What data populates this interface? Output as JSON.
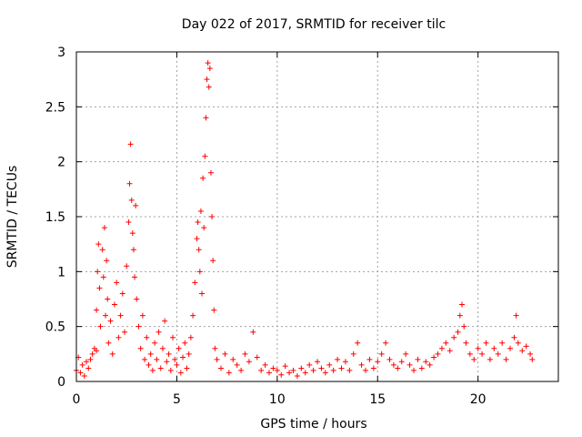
{
  "chart_data": {
    "type": "scatter",
    "title": "Day 022 of 2017, SRMTID for receiver tilc",
    "xlabel": "GPS time / hours",
    "ylabel": "SRMTID / TECUs",
    "xlim": [
      0,
      24
    ],
    "ylim": [
      0,
      3
    ],
    "xticks": [
      0,
      5,
      10,
      15,
      20
    ],
    "xtick_labels": [
      "0",
      "5",
      "10",
      "15",
      "20"
    ],
    "yticks": [
      0,
      0.5,
      1,
      1.5,
      2,
      2.5,
      3
    ],
    "ytick_labels": [
      "0",
      "0.5",
      "1",
      "1.5",
      "2",
      "2.5",
      "3"
    ],
    "grid": true,
    "marker": "+",
    "series": [
      {
        "name": "SRMTID",
        "color": "#ff0000",
        "points": [
          [
            0.0,
            0.1
          ],
          [
            0.1,
            0.22
          ],
          [
            0.2,
            0.08
          ],
          [
            0.3,
            0.15
          ],
          [
            0.4,
            0.05
          ],
          [
            0.5,
            0.18
          ],
          [
            0.6,
            0.12
          ],
          [
            0.7,
            0.2
          ],
          [
            0.8,
            0.25
          ],
          [
            0.9,
            0.3
          ],
          [
            1.0,
            0.28
          ],
          [
            1.0,
            0.65
          ],
          [
            1.05,
            1.0
          ],
          [
            1.1,
            1.25
          ],
          [
            1.15,
            0.85
          ],
          [
            1.2,
            0.5
          ],
          [
            1.3,
            1.2
          ],
          [
            1.35,
            0.95
          ],
          [
            1.4,
            1.4
          ],
          [
            1.45,
            0.6
          ],
          [
            1.5,
            1.1
          ],
          [
            1.55,
            0.75
          ],
          [
            1.6,
            0.35
          ],
          [
            1.7,
            0.55
          ],
          [
            1.8,
            0.25
          ],
          [
            1.9,
            0.7
          ],
          [
            2.0,
            0.9
          ],
          [
            2.1,
            0.4
          ],
          [
            2.2,
            0.6
          ],
          [
            2.3,
            0.8
          ],
          [
            2.4,
            0.45
          ],
          [
            2.5,
            1.05
          ],
          [
            2.6,
            1.45
          ],
          [
            2.65,
            1.8
          ],
          [
            2.7,
            2.16
          ],
          [
            2.75,
            1.65
          ],
          [
            2.8,
            1.35
          ],
          [
            2.85,
            1.2
          ],
          [
            2.9,
            0.95
          ],
          [
            2.95,
            1.6
          ],
          [
            3.0,
            0.75
          ],
          [
            3.1,
            0.5
          ],
          [
            3.2,
            0.3
          ],
          [
            3.3,
            0.6
          ],
          [
            3.4,
            0.2
          ],
          [
            3.5,
            0.4
          ],
          [
            3.6,
            0.15
          ],
          [
            3.7,
            0.25
          ],
          [
            3.8,
            0.1
          ],
          [
            3.9,
            0.35
          ],
          [
            4.0,
            0.2
          ],
          [
            4.1,
            0.45
          ],
          [
            4.2,
            0.12
          ],
          [
            4.3,
            0.3
          ],
          [
            4.4,
            0.55
          ],
          [
            4.5,
            0.18
          ],
          [
            4.6,
            0.25
          ],
          [
            4.7,
            0.1
          ],
          [
            4.8,
            0.4
          ],
          [
            4.9,
            0.2
          ],
          [
            5.0,
            0.15
          ],
          [
            5.1,
            0.3
          ],
          [
            5.2,
            0.08
          ],
          [
            5.3,
            0.22
          ],
          [
            5.4,
            0.35
          ],
          [
            5.5,
            0.12
          ],
          [
            5.6,
            0.25
          ],
          [
            5.7,
            0.4
          ],
          [
            5.8,
            0.6
          ],
          [
            5.9,
            0.9
          ],
          [
            6.0,
            1.3
          ],
          [
            6.05,
            1.45
          ],
          [
            6.1,
            1.2
          ],
          [
            6.15,
            1.0
          ],
          [
            6.2,
            1.55
          ],
          [
            6.25,
            0.8
          ],
          [
            6.3,
            1.85
          ],
          [
            6.35,
            1.4
          ],
          [
            6.4,
            2.05
          ],
          [
            6.45,
            2.4
          ],
          [
            6.5,
            2.75
          ],
          [
            6.55,
            2.9
          ],
          [
            6.6,
            2.68
          ],
          [
            6.65,
            2.85
          ],
          [
            6.7,
            1.9
          ],
          [
            6.75,
            1.5
          ],
          [
            6.8,
            1.1
          ],
          [
            6.85,
            0.65
          ],
          [
            6.9,
            0.3
          ],
          [
            7.0,
            0.2
          ],
          [
            7.2,
            0.12
          ],
          [
            7.4,
            0.25
          ],
          [
            7.6,
            0.08
          ],
          [
            7.8,
            0.2
          ],
          [
            8.0,
            0.15
          ],
          [
            8.2,
            0.1
          ],
          [
            8.4,
            0.25
          ],
          [
            8.6,
            0.18
          ],
          [
            8.8,
            0.45
          ],
          [
            9.0,
            0.22
          ],
          [
            9.2,
            0.1
          ],
          [
            9.4,
            0.15
          ],
          [
            9.6,
            0.08
          ],
          [
            9.8,
            0.12
          ],
          [
            10.0,
            0.1
          ],
          [
            10.2,
            0.06
          ],
          [
            10.4,
            0.14
          ],
          [
            10.6,
            0.08
          ],
          [
            10.8,
            0.1
          ],
          [
            11.0,
            0.05
          ],
          [
            11.2,
            0.12
          ],
          [
            11.4,
            0.08
          ],
          [
            11.6,
            0.15
          ],
          [
            11.8,
            0.1
          ],
          [
            12.0,
            0.18
          ],
          [
            12.2,
            0.12
          ],
          [
            12.4,
            0.08
          ],
          [
            12.6,
            0.15
          ],
          [
            12.8,
            0.1
          ],
          [
            13.0,
            0.2
          ],
          [
            13.2,
            0.12
          ],
          [
            13.4,
            0.18
          ],
          [
            13.6,
            0.1
          ],
          [
            13.8,
            0.25
          ],
          [
            14.0,
            0.35
          ],
          [
            14.2,
            0.15
          ],
          [
            14.4,
            0.1
          ],
          [
            14.6,
            0.2
          ],
          [
            14.8,
            0.12
          ],
          [
            15.0,
            0.18
          ],
          [
            15.2,
            0.25
          ],
          [
            15.4,
            0.35
          ],
          [
            15.6,
            0.2
          ],
          [
            15.8,
            0.15
          ],
          [
            16.0,
            0.12
          ],
          [
            16.2,
            0.18
          ],
          [
            16.4,
            0.25
          ],
          [
            16.6,
            0.15
          ],
          [
            16.8,
            0.1
          ],
          [
            17.0,
            0.2
          ],
          [
            17.2,
            0.12
          ],
          [
            17.4,
            0.18
          ],
          [
            17.6,
            0.15
          ],
          [
            17.8,
            0.22
          ],
          [
            18.0,
            0.25
          ],
          [
            18.2,
            0.3
          ],
          [
            18.4,
            0.35
          ],
          [
            18.6,
            0.28
          ],
          [
            18.8,
            0.4
          ],
          [
            19.0,
            0.45
          ],
          [
            19.1,
            0.6
          ],
          [
            19.2,
            0.7
          ],
          [
            19.3,
            0.5
          ],
          [
            19.4,
            0.35
          ],
          [
            19.6,
            0.25
          ],
          [
            19.8,
            0.2
          ],
          [
            20.0,
            0.3
          ],
          [
            20.2,
            0.25
          ],
          [
            20.4,
            0.35
          ],
          [
            20.6,
            0.2
          ],
          [
            20.8,
            0.3
          ],
          [
            21.0,
            0.25
          ],
          [
            21.2,
            0.35
          ],
          [
            21.4,
            0.2
          ],
          [
            21.6,
            0.3
          ],
          [
            21.8,
            0.4
          ],
          [
            21.9,
            0.6
          ],
          [
            22.0,
            0.35
          ],
          [
            22.2,
            0.28
          ],
          [
            22.4,
            0.32
          ],
          [
            22.6,
            0.25
          ],
          [
            22.7,
            0.2
          ]
        ]
      }
    ]
  }
}
